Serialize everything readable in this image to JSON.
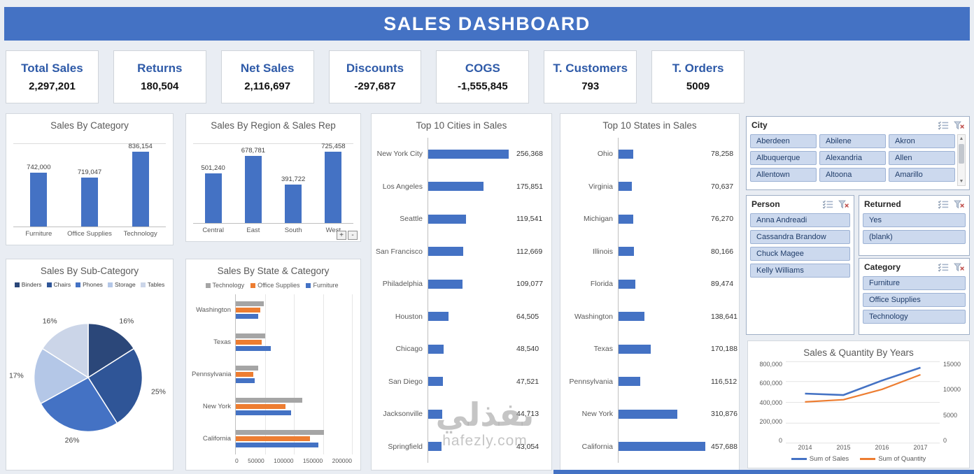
{
  "header": {
    "title": "SALES DASHBOARD"
  },
  "colors": {
    "accent_blue": "#4472C4",
    "bar_blue": "#4472C4",
    "series_gray": "#A5A5A5",
    "series_orange": "#ED7D31",
    "kpi_label_blue": "#2E5AA8",
    "slicer_item_fill": "#CCD9EE",
    "slicer_item_border": "#9DB2D4"
  },
  "kpis": [
    {
      "label": "Total Sales",
      "value": "2,297,201"
    },
    {
      "label": "Returns",
      "value": "180,504"
    },
    {
      "label": "Net Sales",
      "value": "2,116,697"
    },
    {
      "label": "Discounts",
      "value": "-297,687"
    },
    {
      "label": "COGS",
      "value": "-1,555,845"
    },
    {
      "label": "T. Customers",
      "value": "793"
    },
    {
      "label": "T. Orders",
      "value": "5009"
    }
  ],
  "chart_data": [
    {
      "id": "category",
      "type": "bar",
      "title": "Sales By Category",
      "categories": [
        "Furniture",
        "Office Supplies",
        "Technology"
      ],
      "values": [
        742000,
        719047,
        836154
      ],
      "data_labels": [
        "742,000",
        "719,047",
        "836,154"
      ],
      "ylim": [
        500000,
        870000
      ],
      "bar_color": "#4472C4"
    },
    {
      "id": "region",
      "type": "bar",
      "title": "Sales By Region & Sales Rep",
      "categories": [
        "Central",
        "East",
        "South",
        "West"
      ],
      "values": [
        501240,
        678781,
        391722,
        725458
      ],
      "data_labels": [
        "501,240",
        "678,781",
        "391,722",
        "725,458"
      ],
      "ylim": [
        0,
        800000
      ],
      "bar_color": "#4472C4",
      "controls": [
        "+",
        "-"
      ]
    },
    {
      "id": "subcategory",
      "type": "pie",
      "title": "Sales By Sub-Category",
      "categories": [
        "Binders",
        "Chairs",
        "Phones",
        "Storage",
        "Tables"
      ],
      "values": [
        16,
        25,
        26,
        17,
        16
      ],
      "labels": [
        "16%",
        "25%",
        "26%",
        "17%",
        "16%"
      ],
      "colors": [
        "#2B4779",
        "#2F5597",
        "#4472C4",
        "#B4C7E7",
        "#CBD5E8"
      ]
    },
    {
      "id": "state_category",
      "type": "bar-h-grouped",
      "title": "Sales By State & Category",
      "categories": [
        "Washington",
        "Texas",
        "Pennsylvania",
        "New York",
        "California"
      ],
      "series": [
        {
          "name": "Technology",
          "color": "#A5A5A5",
          "values": [
            48000,
            50000,
            38000,
            115000,
            152000
          ]
        },
        {
          "name": "Office Supplies",
          "color": "#ED7D31",
          "values": [
            42000,
            45000,
            30000,
            85000,
            128000
          ]
        },
        {
          "name": "Furniture",
          "color": "#4472C4",
          "values": [
            38000,
            60000,
            33000,
            95000,
            142000
          ]
        }
      ],
      "xlim": [
        0,
        200000
      ],
      "xticks": [
        "0",
        "50000",
        "100000",
        "150000",
        "200000"
      ]
    },
    {
      "id": "cities",
      "type": "bar-h",
      "title": "Top 10 Cities in Sales",
      "categories": [
        "New York City",
        "Los Angeles",
        "Seattle",
        "San Francisco",
        "Philadelphia",
        "Houston",
        "Chicago",
        "San Diego",
        "Jacksonville",
        "Springfield"
      ],
      "values": [
        256368,
        175851,
        119541,
        112669,
        109077,
        64505,
        48540,
        47521,
        44713,
        43054
      ],
      "data_labels": [
        "256,368",
        "175,851",
        "119,541",
        "112,669",
        "109,077",
        "64,505",
        "48,540",
        "47,521",
        "44,713",
        "43,054"
      ],
      "xlim": [
        0,
        270000
      ],
      "bar_color": "#4472C4"
    },
    {
      "id": "states",
      "type": "bar-h",
      "title": "Top 10 States in Sales",
      "categories": [
        "Ohio",
        "Virginia",
        "Michigan",
        "Illinois",
        "Florida",
        "Washington",
        "Texas",
        "Pennsylvania",
        "New York",
        "California"
      ],
      "values": [
        78258,
        70637,
        76270,
        80166,
        89474,
        138641,
        170188,
        116512,
        310876,
        457688
      ],
      "data_labels": [
        "78,258",
        "70,637",
        "76,270",
        "80,166",
        "89,474",
        "138,641",
        "170,188",
        "116,512",
        "310,876",
        "457,688"
      ],
      "xlim": [
        0,
        470000
      ],
      "bar_color": "#4472C4"
    },
    {
      "id": "years",
      "type": "line",
      "title": "Sales & Quantity By Years",
      "x": [
        "2014",
        "2015",
        "2016",
        "2017"
      ],
      "series": [
        {
          "name": "Sum of Sales",
          "color": "#4472C4",
          "axis": "left",
          "values": [
            484247,
            470533,
            609206,
            733215
          ]
        },
        {
          "name": "Sum of Quantity",
          "color": "#ED7D31",
          "axis": "right",
          "values": [
            7581,
            7979,
            9837,
            12476
          ]
        }
      ],
      "left_axis": {
        "ticks": [
          "800,000",
          "600,000",
          "400,000",
          "200,000",
          "0"
        ],
        "max": 800000
      },
      "right_axis": {
        "ticks": [
          "15000",
          "10000",
          "5000",
          "0"
        ],
        "max": 15000
      },
      "legend_position": "bottom"
    }
  ],
  "slicers": [
    {
      "id": "city",
      "title": "City",
      "columns": 3,
      "scrollbar": true,
      "items": [
        "Aberdeen",
        "Abilene",
        "Akron",
        "Albuquerque",
        "Alexandria",
        "Allen",
        "Allentown",
        "Altoona",
        "Amarillo"
      ]
    },
    {
      "id": "person",
      "title": "Person",
      "columns": 1,
      "scrollbar": false,
      "items": [
        "Anna Andreadi",
        "Cassandra Brandow",
        "Chuck Magee",
        "Kelly Williams"
      ]
    },
    {
      "id": "returned",
      "title": "Returned",
      "columns": 1,
      "scrollbar": false,
      "items": [
        "Yes",
        "(blank)"
      ]
    },
    {
      "id": "category",
      "title": "Category",
      "columns": 1,
      "scrollbar": false,
      "items": [
        "Furniture",
        "Office Supplies",
        "Technology"
      ]
    }
  ],
  "watermark": {
    "arabic": "نفذلي",
    "domain": "hafezly.com"
  }
}
